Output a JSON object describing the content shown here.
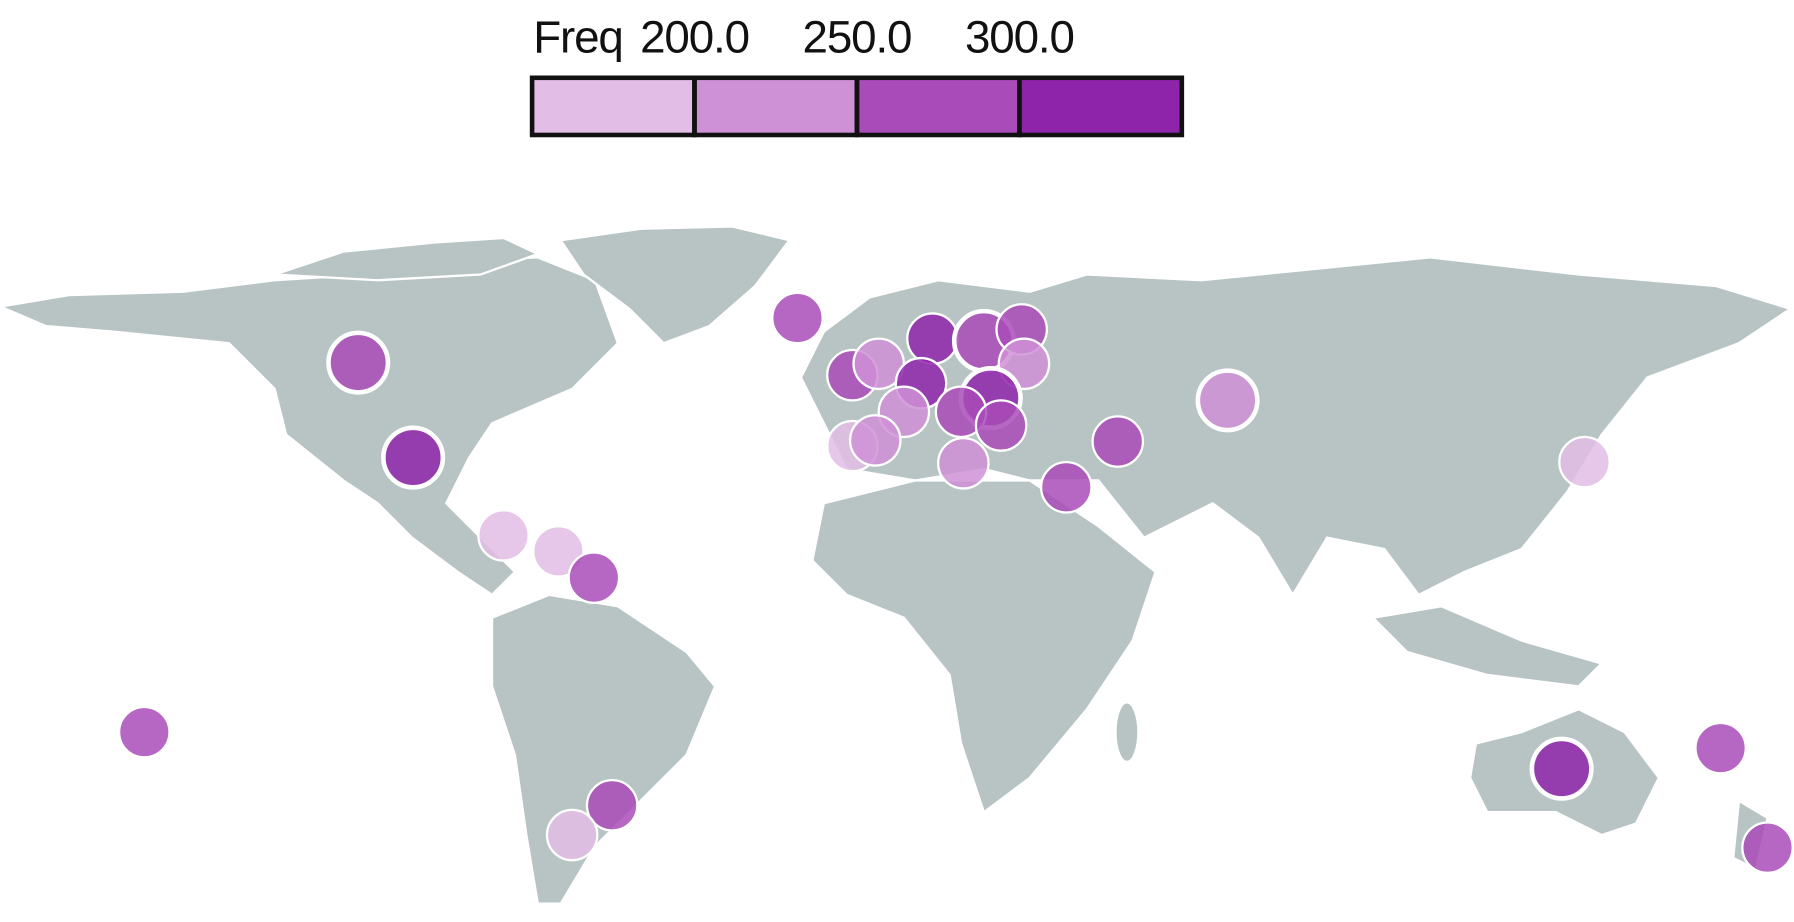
{
  "legend": {
    "title": "Freq",
    "breaks": [
      {
        "value": 200,
        "label": "200.0"
      },
      {
        "value": 250,
        "label": "250.0"
      },
      {
        "value": 300,
        "label": "300.0"
      }
    ],
    "colors": [
      "#e2bde5",
      "#cf91d6",
      "#a94bb9",
      "#8e24aa"
    ]
  },
  "markers": [
    {
      "value": 275
    },
    {
      "value": 275
    },
    {
      "value": 320
    },
    {
      "value": 180
    },
    {
      "value": 180
    },
    {
      "value": 275
    },
    {
      "value": 275
    },
    {
      "value": 275
    },
    {
      "value": 180
    },
    {
      "value": 275
    },
    {
      "value": 225
    },
    {
      "value": 320
    },
    {
      "value": 320
    },
    {
      "value": 275
    },
    {
      "value": 275
    },
    {
      "value": 225
    },
    {
      "value": 320
    },
    {
      "value": 275
    },
    {
      "value": 275
    },
    {
      "value": 225
    },
    {
      "value": 180
    },
    {
      "value": 225
    },
    {
      "value": 225
    },
    {
      "value": 275
    },
    {
      "value": 275
    },
    {
      "value": 225
    },
    {
      "value": 180
    },
    {
      "value": 320
    },
    {
      "value": 275
    },
    {
      "value": 275
    }
  ]
}
